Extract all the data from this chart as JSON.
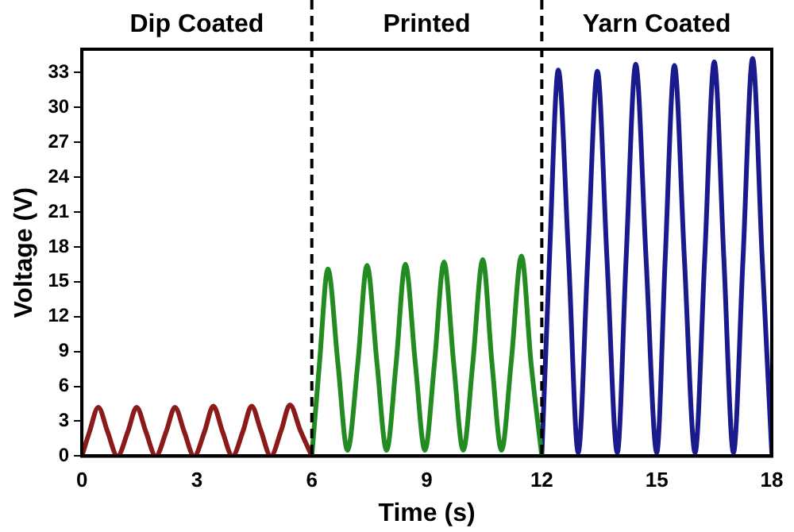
{
  "chart_data": {
    "type": "line",
    "xlabel": "Time (s)",
    "ylabel": "Voltage (V)",
    "xlim": [
      0,
      18
    ],
    "xticks": [
      0,
      3,
      6,
      9,
      12,
      15,
      18
    ],
    "ylim": [
      0,
      35
    ],
    "yticks": [
      0,
      3,
      6,
      9,
      12,
      15,
      18,
      21,
      24,
      27,
      30,
      33
    ],
    "grid": false,
    "legend": false,
    "marker": "none",
    "line_style": "solid",
    "annotations": [
      "Dip Coated",
      "Printed",
      "Yarn Coated"
    ],
    "ref_lines": [
      {
        "axis": "x",
        "value": 6,
        "color": "#000000",
        "line_style": "dashed"
      },
      {
        "axis": "x",
        "value": 12,
        "color": "#000000",
        "line_style": "dashed"
      }
    ],
    "series": [
      {
        "color": "#8b1a1a",
        "x": [
          0,
          0.2,
          0.43,
          0.67,
          0.93,
          1.2,
          1.43,
          1.67,
          1.93,
          2.2,
          2.43,
          2.67,
          2.93,
          3.2,
          3.43,
          3.67,
          3.93,
          4.2,
          4.43,
          4.67,
          4.93,
          5.2,
          5.43,
          5.7,
          6
        ],
        "values": [
          0,
          2.1,
          4.2,
          2.1,
          0,
          2.1,
          4.2,
          2.1,
          0,
          2.1,
          4.2,
          2.1,
          0,
          2.1,
          4.3,
          2.1,
          0,
          2.1,
          4.3,
          2.2,
          0,
          2.2,
          4.4,
          2.2,
          0
        ]
      },
      {
        "color": "#228b22",
        "x": [
          6,
          6.2,
          6.42,
          6.68,
          6.93,
          7.2,
          7.44,
          7.7,
          7.95,
          8.2,
          8.44,
          8.7,
          8.95,
          9.2,
          9.45,
          9.7,
          9.95,
          10.2,
          10.46,
          10.7,
          10.95,
          11.2,
          11.47,
          11.72,
          12
        ],
        "values": [
          0,
          8,
          16.1,
          8,
          0.5,
          8,
          16.4,
          8,
          0.5,
          8,
          16.5,
          8,
          0.5,
          8,
          16.7,
          8,
          0.5,
          8,
          16.9,
          8,
          0.5,
          8,
          17.2,
          8,
          0
        ]
      },
      {
        "color": "#1a1a8c",
        "x": [
          12,
          12.2,
          12.43,
          12.7,
          12.95,
          13.2,
          13.45,
          13.7,
          13.97,
          14.2,
          14.45,
          14.72,
          15,
          15.22,
          15.46,
          15.72,
          16,
          16.25,
          16.5,
          16.75,
          17,
          17.25,
          17.5,
          17.75,
          18
        ],
        "values": [
          0,
          17,
          33.2,
          17,
          0.3,
          17,
          33.1,
          17,
          0.3,
          17,
          33.7,
          17,
          0.3,
          17,
          33.6,
          17,
          0.3,
          17,
          33.9,
          17,
          0.3,
          17,
          34.2,
          17,
          0.3
        ]
      }
    ]
  }
}
